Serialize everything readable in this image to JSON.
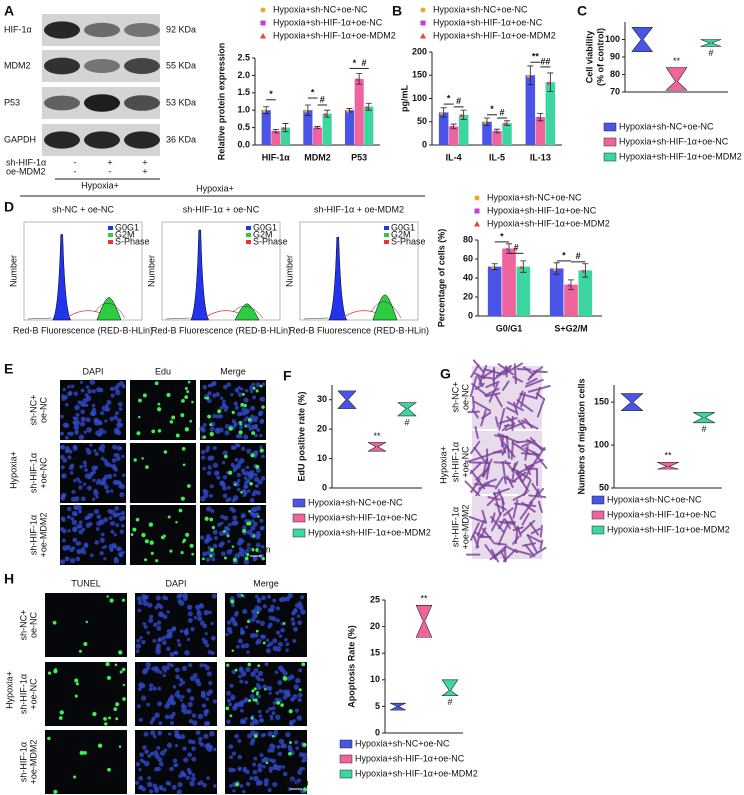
{
  "panel_labels": [
    "A",
    "B",
    "C",
    "D",
    "E",
    "F",
    "G",
    "H"
  ],
  "blot": {
    "rows": [
      {
        "label": "HIF-1α",
        "size": "92 KDa"
      },
      {
        "label": "MDM2",
        "size": "55 KDa"
      },
      {
        "label": "P53",
        "size": "53 KDa"
      },
      {
        "label": "GAPDH",
        "size": "36 KDa"
      }
    ],
    "conditions": [
      {
        "label": "sh-HIF-1α",
        "marks": [
          "-",
          "+",
          "+"
        ]
      },
      {
        "label": "oe-MDM2",
        "marks": [
          "-",
          "-",
          "+"
        ]
      }
    ],
    "group": "Hypoxia+"
  },
  "hypoxia_header": "Hypoxia+",
  "flow": {
    "panels": [
      "sh-NC + oe-NC",
      "sh-HIF-1α + oe-NC",
      "sh-HIF-1α + oe-MDM2"
    ],
    "legend": [
      "G0G1",
      "G2M",
      "S-Phase"
    ],
    "x_label": "Red-B Fluorescence (RED-B-HLin)",
    "y_label": "Number"
  },
  "edu": {
    "columns": [
      "DAPI",
      "Edu",
      "Merge"
    ],
    "rows": [
      [
        "sh-NC+",
        "oe-NC"
      ],
      [
        "sh-HIF-1α",
        "+oe-NC"
      ],
      [
        "sh-HIF-1α",
        "+oe-MDM2"
      ]
    ],
    "group": "Hypoxia+",
    "scale": "50 μm"
  },
  "migration": {
    "rows": [
      [
        "sh-NC+",
        "oe-NC"
      ],
      [
        "sh-HIF-1α",
        "+oe-NC"
      ],
      [
        "sh-HIF-1α",
        "+oe-MDM2"
      ]
    ],
    "group": "Hypoxia+"
  },
  "tunel": {
    "columns": [
      "TUNEL",
      "DAPI",
      "Merge"
    ],
    "rows": [
      [
        "sh-NC+",
        "oe-NC"
      ],
      [
        "sh-HIF-1α",
        "+oe-NC"
      ],
      [
        "sh-HIF-1α",
        "+oe-MDM2"
      ]
    ],
    "group": "Hypoxia+",
    "scale": "50 μm"
  },
  "chart_data": [
    {
      "type": "bar",
      "y_label": "Relative protein expression",
      "categories": [
        "HIF-1α",
        "MDM2",
        "P53"
      ],
      "series": [
        {
          "name": "Hypoxia+sh-NC+oe-NC",
          "color": "#4a55e8",
          "marker": "circle",
          "marker_color": "#f5a02a",
          "values": [
            1.0,
            1.0,
            1.0
          ],
          "errors": [
            0.1,
            0.15,
            0.05
          ]
        },
        {
          "name": "Hypoxia+sh-HIF-1α+oe-NC",
          "color": "#f0649e",
          "marker": "square",
          "marker_color": "#c43ed6",
          "values": [
            0.4,
            0.5,
            1.9
          ],
          "errors": [
            0.05,
            0.03,
            0.15
          ]
        },
        {
          "name": "Hypoxia+sh-HIF-1α+oe-MDM2",
          "color": "#3dd6a0",
          "marker": "triangle",
          "marker_color": "#e8423c",
          "values": [
            0.5,
            0.9,
            1.1
          ],
          "errors": [
            0.12,
            0.1,
            0.1
          ]
        }
      ],
      "ylim": [
        0,
        2.5
      ],
      "yticks": [
        {
          "value": 0,
          "label": "0.0"
        },
        0.5,
        {
          "value": 1,
          "label": "1.0"
        },
        1.5,
        {
          "value": 2,
          "label": "2.0"
        },
        2.5
      ],
      "annotations": [
        "*",
        "*",
        "#",
        "*",
        "#"
      ]
    },
    {
      "type": "bar",
      "y_label": "pg/mL",
      "categories": [
        "IL-4",
        "IL-5",
        "IL-13"
      ],
      "series": [
        {
          "name": "Hypoxia+sh-NC+oe-NC",
          "color": "#4a55e8",
          "marker": "circle",
          "marker_color": "#f5a02a",
          "values": [
            70,
            50,
            150
          ],
          "errors": [
            10,
            8,
            20
          ]
        },
        {
          "name": "Hypoxia+sh-HIF-1α+oe-NC",
          "color": "#f0649e",
          "marker": "square",
          "marker_color": "#c43ed6",
          "values": [
            40,
            30,
            60
          ],
          "errors": [
            5,
            4,
            8
          ]
        },
        {
          "name": "Hypoxia+sh-HIF-1α+oe-MDM2",
          "color": "#3dd6a0",
          "marker": "triangle",
          "marker_color": "#e8423c",
          "values": [
            65,
            47,
            135
          ],
          "errors": [
            10,
            5,
            20
          ]
        }
      ],
      "ylim": [
        0,
        200
      ],
      "yticks": [
        0,
        50,
        100,
        150,
        200
      ],
      "annotations": [
        "*",
        "#",
        "*",
        "#",
        "**",
        "##"
      ]
    },
    {
      "type": "violin",
      "y_label": [
        "Cell viability",
        "(% of control)"
      ],
      "series": [
        {
          "name": "Hypoxia+sh-NC+oe-NC",
          "color": "#4a55e8",
          "values": [
            100
          ],
          "range": [
            93,
            107
          ]
        },
        {
          "name": "Hypoxia+sh-HIF-1α+oe-NC",
          "color": "#f0649e",
          "values": [
            76
          ],
          "range": [
            71,
            84
          ],
          "annotation": "**"
        },
        {
          "name": "Hypoxia+sh-HIF-1α+oe-MDM2",
          "color": "#3dd6a0",
          "values": [
            98
          ],
          "range": [
            96,
            100
          ],
          "annotation": "#"
        }
      ],
      "ylim": [
        70,
        110
      ],
      "yticks": [
        70,
        80,
        90,
        100
      ]
    },
    {
      "type": "bar",
      "y_label": "Percentage of cells (%)",
      "categories": [
        "G0/G1",
        "S+G2/M"
      ],
      "series": [
        {
          "name": "Hypoxia+sh-NC+oe-NC",
          "color": "#4a55e8",
          "marker": "circle",
          "marker_color": "#f5a02a",
          "values": [
            52,
            50
          ],
          "errors": [
            3,
            6
          ]
        },
        {
          "name": "Hypoxia+sh-HIF-1α+oe-NC",
          "color": "#f0649e",
          "marker": "square",
          "marker_color": "#c43ed6",
          "values": [
            71,
            33
          ],
          "errors": [
            5,
            5
          ]
        },
        {
          "name": "Hypoxia+sh-HIF-1α+oe-MDM2",
          "color": "#3dd6a0",
          "marker": "triangle",
          "marker_color": "#e8423c",
          "values": [
            52,
            48
          ],
          "errors": [
            6,
            7
          ]
        }
      ],
      "ylim": [
        0,
        80
      ],
      "yticks": [
        0,
        20,
        40,
        60,
        80
      ],
      "annotations": [
        "*",
        "#",
        "*",
        "#"
      ]
    },
    {
      "type": "violin",
      "y_label": "EdU positive rate (%)",
      "series": [
        {
          "name": "Hypoxia+sh-NC+oe-NC",
          "color": "#4a55e8",
          "values": [
            30
          ],
          "range": [
            27,
            33
          ]
        },
        {
          "name": "Hypoxia+sh-HIF-1α+oe-NC",
          "color": "#f0649e",
          "values": [
            14
          ],
          "range": [
            12.5,
            15.5
          ],
          "annotation": "**"
        },
        {
          "name": "Hypoxia+sh-HIF-1α+oe-MDM2",
          "color": "#3dd6a0",
          "values": [
            27
          ],
          "range": [
            24.5,
            29
          ]
        }
      ],
      "ylim": [
        0,
        35
      ],
      "yticks": [
        0,
        10,
        20,
        30
      ],
      "series_annotation": "#"
    },
    {
      "type": "violin",
      "y_label": "Numbers of migration cells",
      "series": [
        {
          "name": "Hypoxia+sh-NC+oe-NC",
          "color": "#4a55e8",
          "values": [
            150
          ],
          "range": [
            140,
            160
          ]
        },
        {
          "name": "Hypoxia+sh-HIF-1α+oe-NC",
          "color": "#f0649e",
          "values": [
            75
          ],
          "range": [
            72,
            80
          ],
          "annotation": "**"
        },
        {
          "name": "Hypoxia+sh-HIF-1α+oe-MDM2",
          "color": "#3dd6a0",
          "values": [
            132
          ],
          "range": [
            126,
            138
          ],
          "annotation": "#"
        }
      ],
      "ylim": [
        50,
        170
      ],
      "yticks": [
        50,
        100,
        150
      ]
    },
    {
      "type": "violin",
      "y_label": "Apoptosis Rate (%)",
      "series": [
        {
          "name": "Hypoxia+sh-NC+oe-NC",
          "color": "#4a55e8",
          "values": [
            5
          ],
          "range": [
            4.3,
            5.6
          ]
        },
        {
          "name": "Hypoxia+sh-HIF-1α+oe-NC",
          "color": "#f0649e",
          "values": [
            21
          ],
          "range": [
            18,
            24
          ],
          "annotation": "**"
        },
        {
          "name": "Hypoxia+sh-HIF-1α+oe-MDM2",
          "color": "#3dd6a0",
          "values": [
            8
          ],
          "range": [
            7,
            10
          ],
          "annotation": "#"
        }
      ],
      "ylim": [
        0,
        25
      ],
      "yticks": [
        0,
        5,
        10,
        15,
        20,
        25
      ]
    }
  ]
}
